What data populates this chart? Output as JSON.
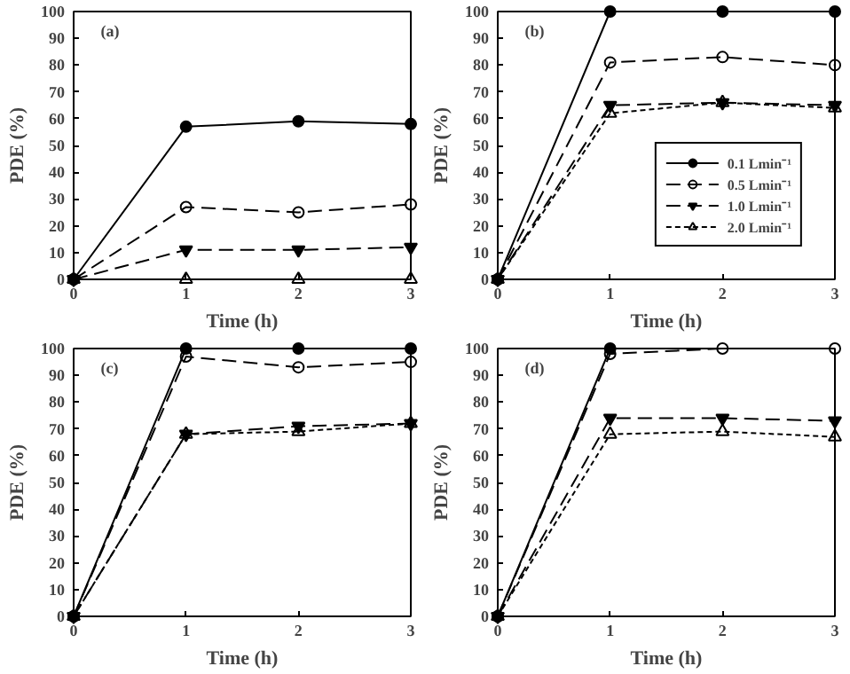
{
  "chart_data": [
    {
      "type": "line",
      "annotations": [
        "(a)"
      ],
      "xlabel": "Time (h)",
      "ylabel": "PDE (%)",
      "x": [
        0,
        1,
        2,
        3
      ],
      "xlim": [
        0,
        3
      ],
      "xticks": [
        0,
        1,
        2,
        3
      ],
      "ylim": [
        0,
        100
      ],
      "yticks": [
        0,
        10,
        20,
        30,
        40,
        50,
        60,
        70,
        80,
        90,
        100
      ],
      "grid": false,
      "legend": false,
      "series": [
        {
          "color": "#000000",
          "marker": "circle",
          "line_style": "solid",
          "values": [
            0,
            57,
            59,
            58
          ]
        },
        {
          "color": "#000000",
          "marker": "circle",
          "line_style": "dashed",
          "values": [
            0,
            27,
            25,
            28
          ]
        },
        {
          "color": "#000000",
          "marker": "triangle",
          "line_style": "dashed",
          "values": [
            0,
            11,
            11,
            12
          ]
        },
        {
          "color": "#000000",
          "marker": "triangle",
          "line_style": "dotted",
          "values": [
            0,
            0,
            0,
            0
          ]
        }
      ]
    },
    {
      "type": "line",
      "annotations": [
        "(b)"
      ],
      "xlabel": "Time (h)",
      "ylabel": "PDE (%)",
      "x": [
        0,
        1,
        2,
        3
      ],
      "xlim": [
        0,
        3
      ],
      "xticks": [
        0,
        1,
        2,
        3
      ],
      "ylim": [
        0,
        100
      ],
      "yticks": [
        0,
        10,
        20,
        30,
        40,
        50,
        60,
        70,
        80,
        90,
        100
      ],
      "grid": false,
      "legend": "right",
      "series": [
        {
          "name": "0.1 Lmin⁻¹",
          "color": "#000000",
          "marker": "circle",
          "line_style": "solid",
          "values": [
            0,
            100,
            100,
            100
          ]
        },
        {
          "name": "0.5 Lmin⁻¹",
          "color": "#000000",
          "marker": "circle",
          "line_style": "dashed",
          "values": [
            0,
            81,
            83,
            80
          ]
        },
        {
          "name": "1.0 Lmin⁻¹",
          "color": "#000000",
          "marker": "triangle",
          "line_style": "dashed",
          "values": [
            0,
            65,
            66,
            65
          ]
        },
        {
          "name": "2.0 Lmin⁻¹",
          "color": "#000000",
          "marker": "triangle",
          "line_style": "dotted",
          "values": [
            0,
            62,
            66,
            64
          ]
        }
      ]
    },
    {
      "type": "line",
      "annotations": [
        "(c)"
      ],
      "xlabel": "Time (h)",
      "ylabel": "PDE (%)",
      "x": [
        0,
        1,
        2,
        3
      ],
      "xlim": [
        0,
        3
      ],
      "xticks": [
        0,
        1,
        2,
        3
      ],
      "ylim": [
        0,
        100
      ],
      "yticks": [
        0,
        10,
        20,
        30,
        40,
        50,
        60,
        70,
        80,
        90,
        100
      ],
      "grid": false,
      "legend": false,
      "series": [
        {
          "color": "#000000",
          "marker": "circle",
          "line_style": "solid",
          "values": [
            0,
            100,
            100,
            100
          ]
        },
        {
          "color": "#000000",
          "marker": "circle",
          "line_style": "dashed",
          "values": [
            0,
            97,
            93,
            95
          ]
        },
        {
          "color": "#000000",
          "marker": "triangle",
          "line_style": "dashed",
          "values": [
            0,
            68,
            71,
            72
          ]
        },
        {
          "color": "#000000",
          "marker": "triangle",
          "line_style": "dotted",
          "values": [
            0,
            68,
            69,
            72
          ]
        }
      ]
    },
    {
      "type": "line",
      "annotations": [
        "(d)"
      ],
      "xlabel": "Time (h)",
      "ylabel": "PDE (%)",
      "x": [
        0,
        1,
        2,
        3
      ],
      "xlim": [
        0,
        3
      ],
      "xticks": [
        0,
        1,
        2,
        3
      ],
      "ylim": [
        0,
        100
      ],
      "yticks": [
        0,
        10,
        20,
        30,
        40,
        50,
        60,
        70,
        80,
        90,
        100
      ],
      "grid": false,
      "legend": false,
      "series": [
        {
          "color": "#000000",
          "marker": "circle",
          "line_style": "solid",
          "values": [
            0,
            100,
            null,
            null
          ]
        },
        {
          "color": "#000000",
          "marker": "circle",
          "line_style": "dashed",
          "values": [
            0,
            98,
            100,
            100
          ]
        },
        {
          "color": "#000000",
          "marker": "triangle",
          "line_style": "dashed",
          "values": [
            0,
            74,
            74,
            73
          ]
        },
        {
          "color": "#000000",
          "marker": "triangle",
          "line_style": "dotted",
          "values": [
            0,
            68,
            69,
            67
          ]
        }
      ]
    }
  ]
}
